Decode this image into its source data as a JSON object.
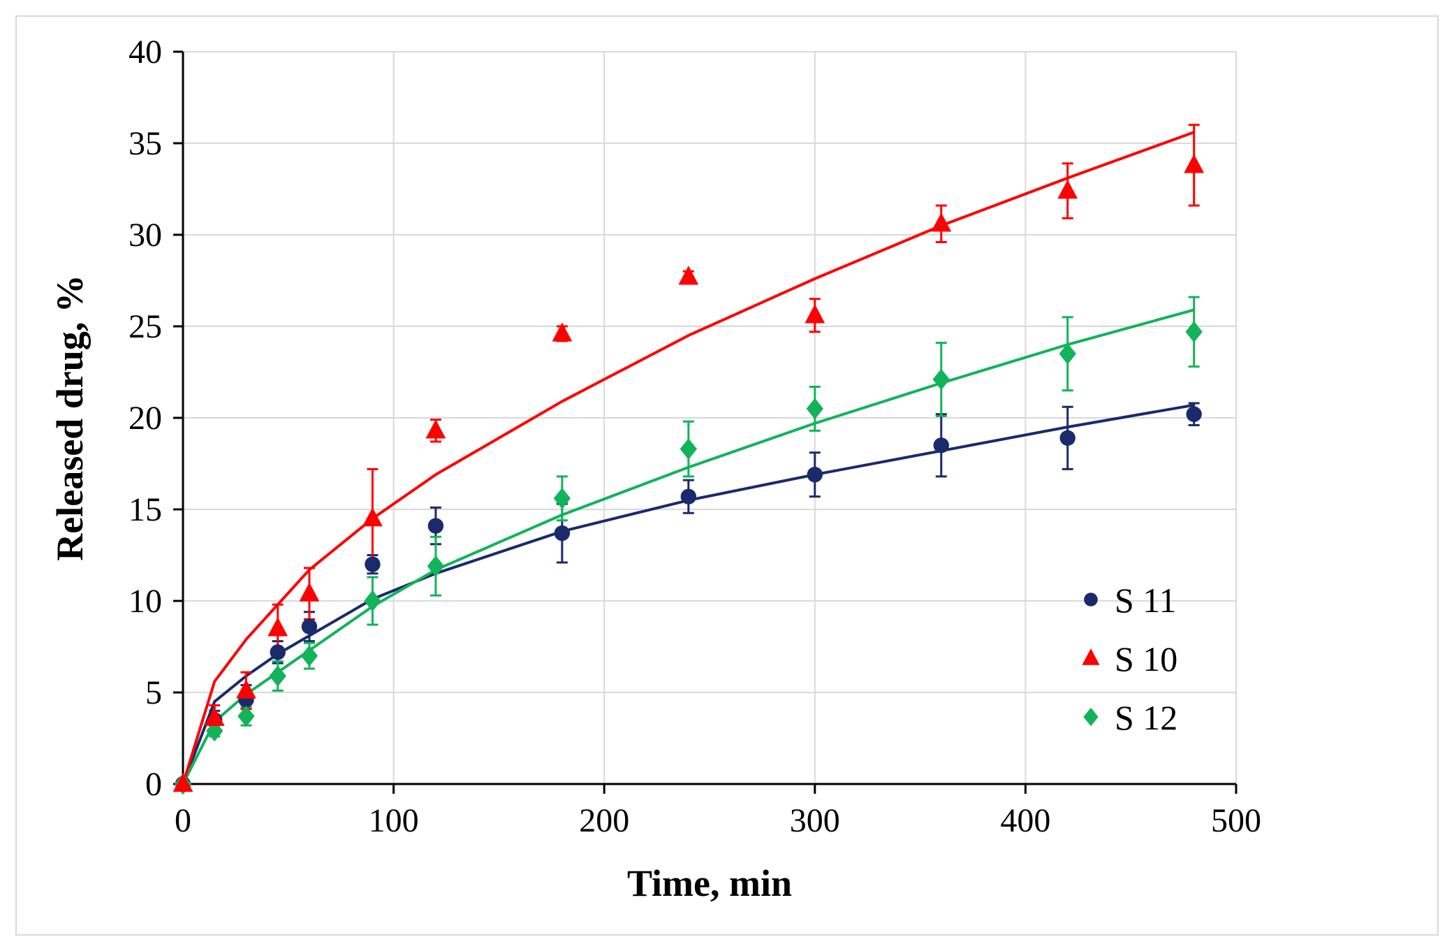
{
  "chart_data": {
    "type": "scatter",
    "title": "",
    "xlabel": "Time, min",
    "ylabel": "Released drug, %",
    "xlim": [
      0,
      500
    ],
    "ylim": [
      0,
      40
    ],
    "x_ticks": [
      0,
      100,
      200,
      300,
      400,
      500
    ],
    "y_ticks": [
      0,
      5,
      10,
      15,
      20,
      25,
      30,
      35,
      40
    ],
    "grid": true,
    "legend_position": "bottom-right",
    "series": [
      {
        "name": "S 11",
        "color": "#1a2a6c",
        "marker": "circle",
        "x": [
          0,
          15,
          30,
          45,
          60,
          90,
          120,
          180,
          240,
          300,
          360,
          420,
          480
        ],
        "y": [
          0,
          3.5,
          4.6,
          7.2,
          8.6,
          12.0,
          14.1,
          13.7,
          15.7,
          16.9,
          18.5,
          18.9,
          20.2
        ],
        "error": [
          0,
          0.5,
          0.8,
          0.6,
          0.8,
          0.5,
          1.0,
          1.6,
          0.9,
          1.2,
          1.7,
          1.7,
          0.6
        ],
        "fit_x": [
          0,
          15,
          30,
          45,
          60,
          90,
          120,
          180,
          240,
          300,
          360,
          420,
          480
        ],
        "fit_y": [
          0,
          4.5,
          5.9,
          7.1,
          8.1,
          10.1,
          11.5,
          13.8,
          15.5,
          16.9,
          18.2,
          19.5,
          20.7
        ]
      },
      {
        "name": "S 10",
        "color": "#ff0000",
        "marker": "triangle",
        "x": [
          0,
          15,
          30,
          45,
          60,
          90,
          120,
          180,
          240,
          300,
          360,
          420,
          480
        ],
        "y": [
          0,
          3.6,
          5.1,
          8.5,
          10.4,
          14.5,
          19.3,
          24.6,
          27.7,
          25.6,
          30.6,
          32.4,
          33.8
        ],
        "error": [
          0,
          0.7,
          1.0,
          1.3,
          1.4,
          2.7,
          0.6,
          0.4,
          0.3,
          0.9,
          1.0,
          1.5,
          2.2
        ],
        "fit_x": [
          0,
          15,
          30,
          45,
          60,
          90,
          120,
          180,
          240,
          300,
          360,
          420,
          480
        ],
        "fit_y": [
          0,
          5.6,
          7.9,
          9.8,
          11.7,
          14.5,
          16.9,
          20.9,
          24.5,
          27.6,
          30.5,
          33.1,
          35.6
        ]
      },
      {
        "name": "S 12",
        "color": "#12b35a",
        "marker": "diamond",
        "x": [
          0,
          15,
          30,
          45,
          60,
          90,
          120,
          180,
          240,
          300,
          360,
          420,
          480
        ],
        "y": [
          0,
          2.9,
          3.7,
          5.9,
          7.0,
          10.0,
          11.9,
          15.6,
          18.3,
          20.5,
          22.1,
          23.5,
          24.7
        ],
        "error": [
          0,
          0.3,
          0.5,
          0.8,
          0.7,
          1.3,
          1.6,
          1.2,
          1.5,
          1.2,
          2.0,
          2.0,
          1.9
        ],
        "fit_x": [
          0,
          15,
          30,
          45,
          60,
          90,
          120,
          180,
          240,
          300,
          360,
          420,
          480
        ],
        "fit_y": [
          0,
          3.4,
          4.9,
          6.1,
          7.3,
          9.7,
          11.7,
          14.7,
          17.3,
          19.7,
          21.9,
          24.0,
          25.9
        ]
      }
    ]
  }
}
